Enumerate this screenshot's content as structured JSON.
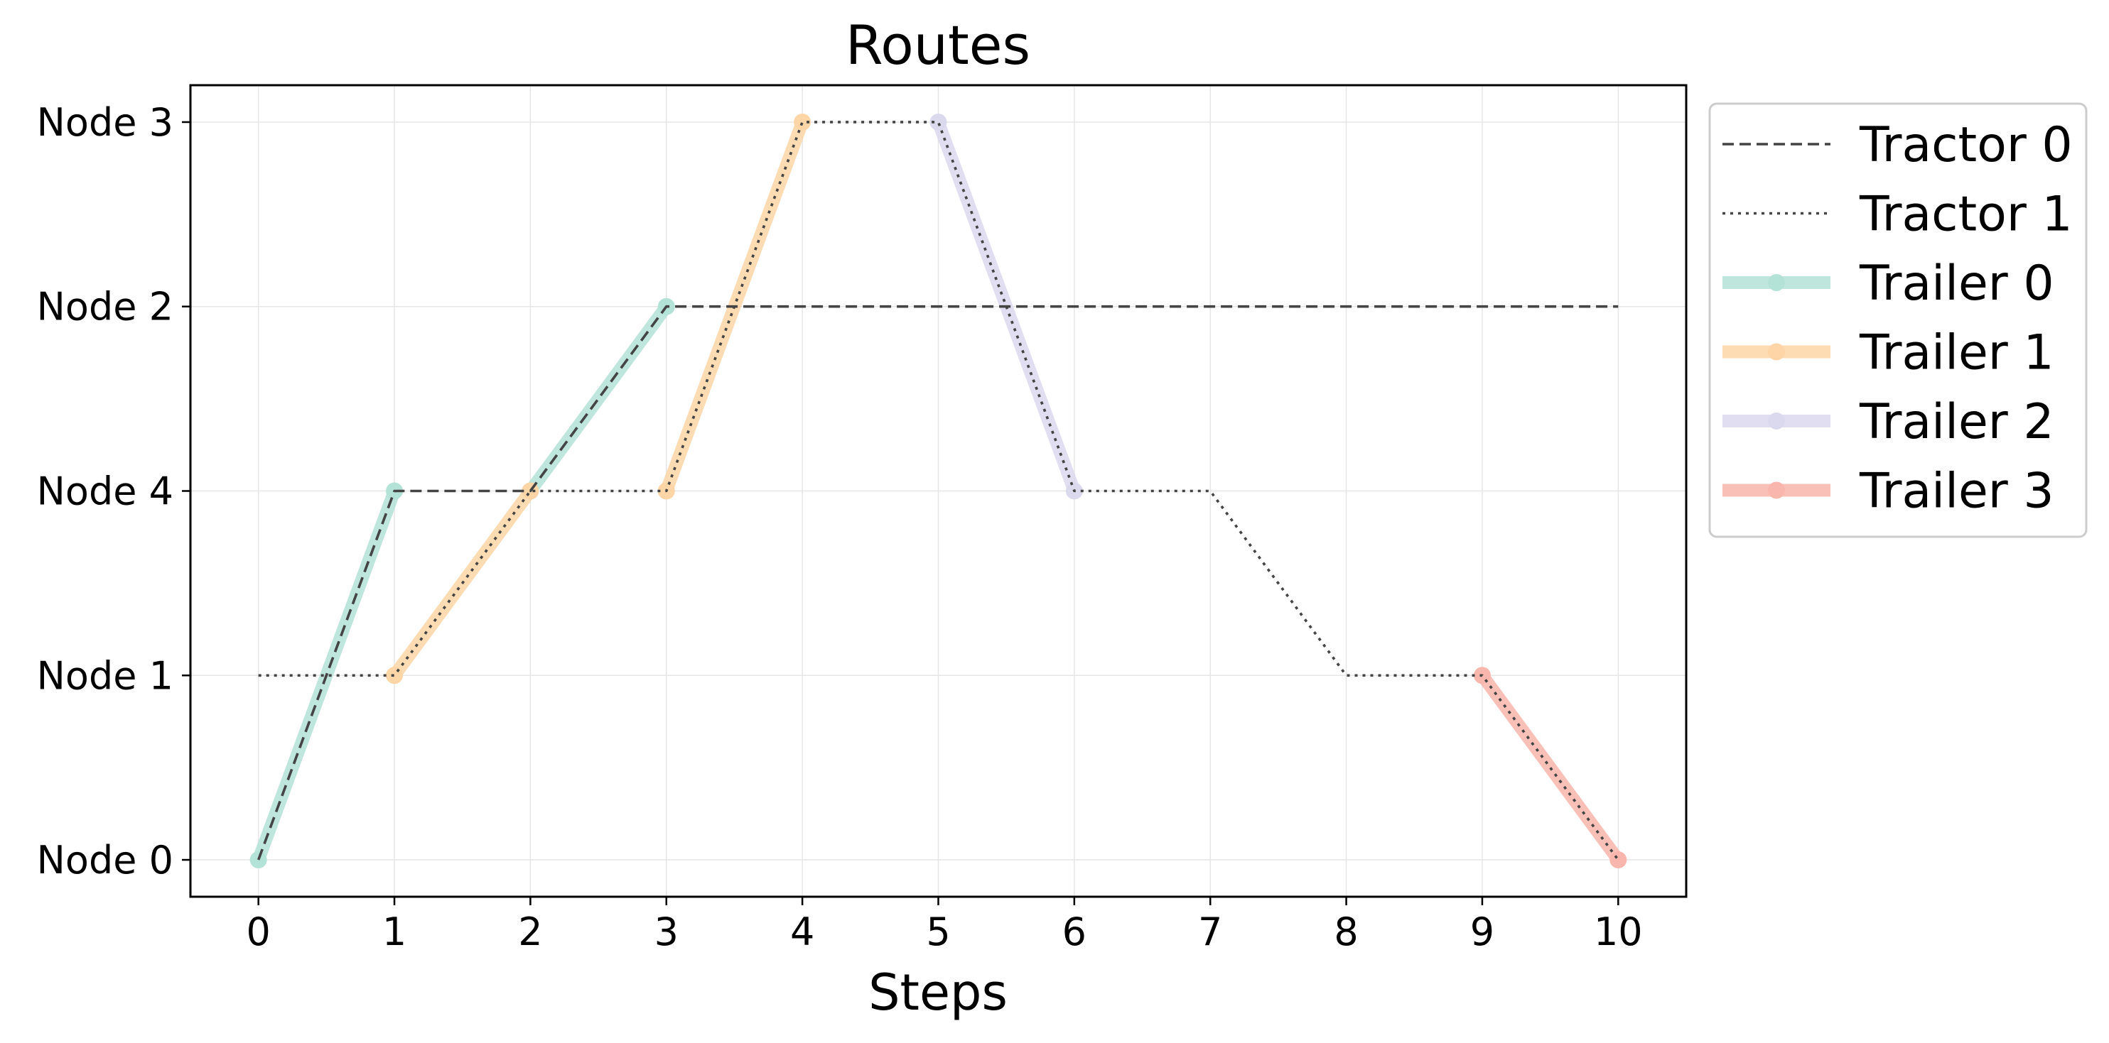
{
  "chart_data": {
    "type": "line",
    "title": "Routes",
    "xlabel": "Steps",
    "ylabel": "",
    "x_ticks": [
      0,
      1,
      2,
      3,
      4,
      5,
      6,
      7,
      8,
      9,
      10
    ],
    "xlim": [
      -0.5,
      10.5
    ],
    "y_categories": [
      "Node 0",
      "Node 1",
      "Node 4",
      "Node 2",
      "Node 3"
    ],
    "grid": true,
    "legend_placement": "outside upper right",
    "series": [
      {
        "name": "Tractor 0",
        "kind": "tractor",
        "dash": "dashed",
        "color": "#444444",
        "points": [
          [
            0,
            "Node 0"
          ],
          [
            1,
            "Node 4"
          ],
          [
            2,
            "Node 4"
          ],
          [
            3,
            "Node 2"
          ],
          [
            4,
            "Node 2"
          ],
          [
            5,
            "Node 2"
          ],
          [
            6,
            "Node 2"
          ],
          [
            7,
            "Node 2"
          ],
          [
            8,
            "Node 2"
          ],
          [
            9,
            "Node 2"
          ],
          [
            10,
            "Node 2"
          ]
        ]
      },
      {
        "name": "Tractor 1",
        "kind": "tractor",
        "dash": "dotted",
        "color": "#444444",
        "points": [
          [
            0,
            "Node 1"
          ],
          [
            1,
            "Node 1"
          ],
          [
            2,
            "Node 4"
          ],
          [
            3,
            "Node 4"
          ],
          [
            4,
            "Node 3"
          ],
          [
            5,
            "Node 3"
          ],
          [
            6,
            "Node 4"
          ],
          [
            7,
            "Node 4"
          ],
          [
            8,
            "Node 1"
          ],
          [
            9,
            "Node 1"
          ],
          [
            10,
            "Node 0"
          ]
        ]
      },
      {
        "name": "Trailer 0",
        "kind": "trailer",
        "color": "#b3e2d6",
        "points": [
          [
            0,
            "Node 0"
          ],
          [
            1,
            "Node 4"
          ],
          [
            2,
            "Node 4"
          ],
          [
            3,
            "Node 2"
          ]
        ],
        "segments": [
          [
            0,
            1
          ],
          [
            2,
            3
          ]
        ]
      },
      {
        "name": "Trailer 1",
        "kind": "trailer",
        "color": "#fdd5a6",
        "points": [
          [
            1,
            "Node 1"
          ],
          [
            2,
            "Node 4"
          ],
          [
            3,
            "Node 4"
          ],
          [
            4,
            "Node 3"
          ]
        ],
        "segments": [
          [
            1,
            2
          ],
          [
            3,
            4
          ]
        ]
      },
      {
        "name": "Trailer 2",
        "kind": "trailer",
        "color": "#dbd9ee",
        "points": [
          [
            5,
            "Node 3"
          ],
          [
            6,
            "Node 4"
          ]
        ],
        "segments": [
          [
            5,
            6
          ]
        ]
      },
      {
        "name": "Trailer 3",
        "kind": "trailer",
        "color": "#f8b6ac",
        "points": [
          [
            9,
            "Node 1"
          ],
          [
            10,
            "Node 0"
          ]
        ],
        "segments": [
          [
            9,
            10
          ]
        ]
      }
    ]
  }
}
